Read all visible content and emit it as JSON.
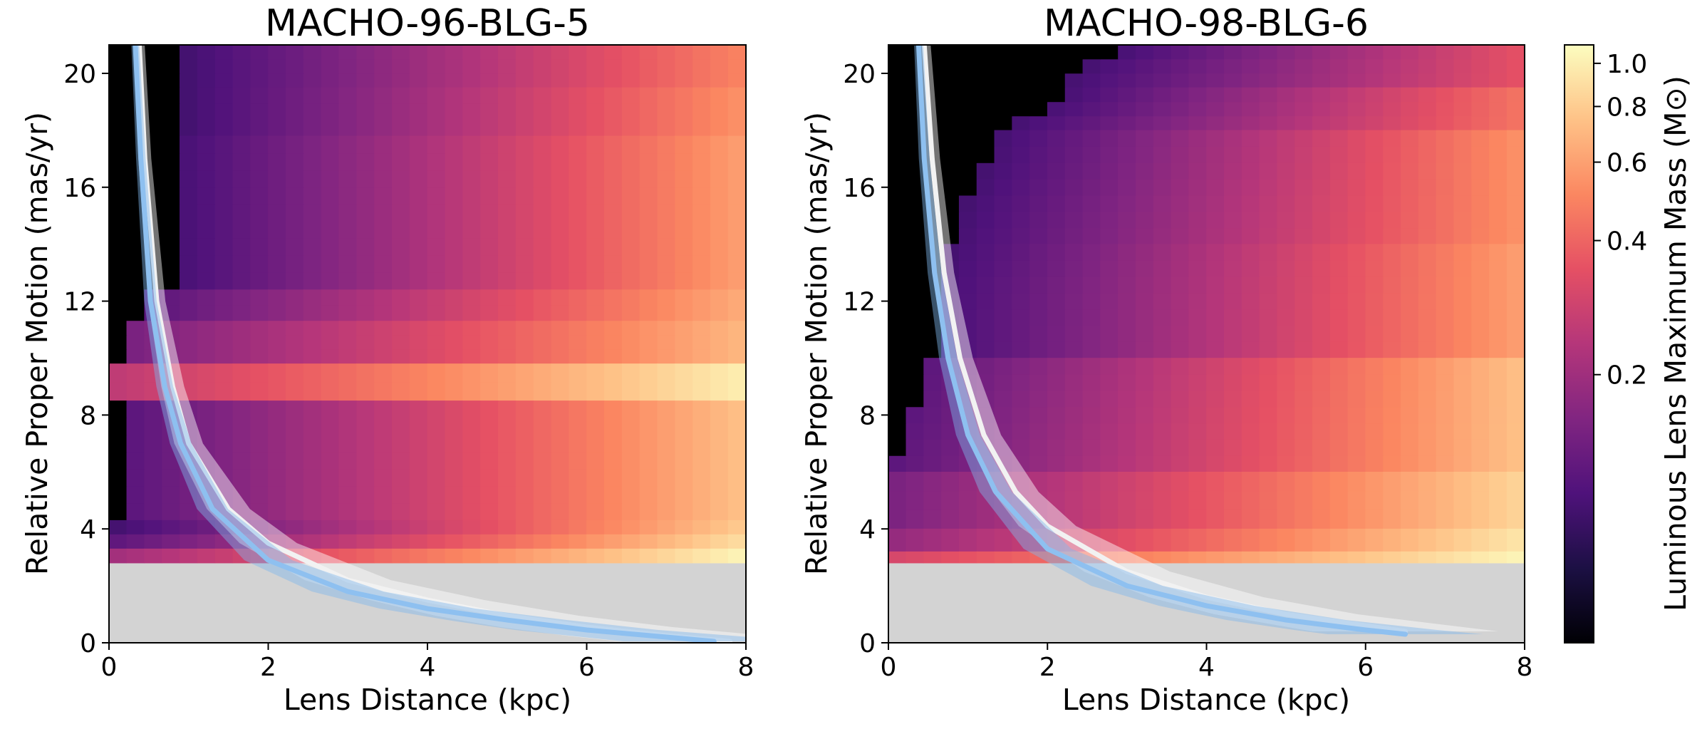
{
  "chart_data": [
    {
      "type": "heatmap",
      "title": "MACHO-96-BLG-5",
      "xlabel": "Lens Distance (kpc)",
      "ylabel": "Relative Proper Motion (mas/yr)",
      "xlim": [
        0,
        8
      ],
      "ylim": [
        0,
        21
      ],
      "xticks": [
        0,
        2,
        4,
        6,
        8
      ],
      "yticks": [
        0,
        4,
        8,
        12,
        16,
        20
      ],
      "excluded_region": {
        "mu_below": 2.8,
        "color": "#d3d3d3"
      },
      "heatmap": {
        "x_range": [
          0,
          8
        ],
        "y_range": [
          2.8,
          21
        ],
        "zero_color": "#000000",
        "mass_rows": [
          {
            "mu": [
              19.5,
              21.0
            ],
            "forbidden_below_D": 1.0,
            "mass_at_start": 0.1,
            "mass_at_8kpc": 0.5
          },
          {
            "mu": [
              17.8,
              19.5
            ],
            "forbidden_below_D": 1.0,
            "mass_at_start": 0.1,
            "mass_at_8kpc": 0.55
          },
          {
            "mu": [
              12.4,
              17.8
            ],
            "forbidden_below_D": 0.8,
            "mass_at_start": 0.1,
            "mass_at_8kpc": 0.6
          },
          {
            "mu": [
              11.3,
              12.4
            ],
            "forbidden_below_D": 0.55,
            "mass_at_start": 0.12,
            "mass_at_8kpc": 0.65
          },
          {
            "mu": [
              9.8,
              11.3
            ],
            "forbidden_below_D": 0.3,
            "mass_at_start": 0.15,
            "mass_at_8kpc": 0.7
          },
          {
            "mu": [
              8.5,
              9.8
            ],
            "forbidden_below_D": 0.0,
            "mass_at_start": 0.25,
            "mass_at_8kpc": 1.0
          },
          {
            "mu": [
              4.3,
              8.5
            ],
            "forbidden_below_D": 0.3,
            "mass_at_start": 0.12,
            "mass_at_8kpc": 0.75
          },
          {
            "mu": [
              3.8,
              4.3
            ],
            "forbidden_below_D": 0.1,
            "mass_at_start": 0.1,
            "mass_at_8kpc": 0.8
          },
          {
            "mu": [
              3.3,
              3.8
            ],
            "forbidden_below_D": 0.0,
            "mass_at_start": 0.12,
            "mass_at_8kpc": 0.9
          },
          {
            "mu": [
              2.8,
              3.3
            ],
            "forbidden_below_D": 0.0,
            "mass_at_start": 0.2,
            "mass_at_8kpc": 1.05
          }
        ]
      },
      "curves": [
        {
          "color": "#f2f2f2",
          "band_color": "#ffffff",
          "mu": [
            [
              0.38,
              21
            ],
            [
              0.45,
              17
            ],
            [
              0.6,
              12
            ],
            [
              0.8,
              9
            ],
            [
              1.0,
              7
            ],
            [
              1.5,
              4.7
            ],
            [
              2,
              3.5
            ],
            [
              3,
              2.2
            ],
            [
              4,
              1.5
            ],
            [
              5,
              0.95
            ],
            [
              6,
              0.55
            ],
            [
              7,
              0.25
            ],
            [
              7.8,
              0.05
            ]
          ],
          "band_halfwidth_frac": 0.18
        },
        {
          "color": "#8ec0f0",
          "band_color": "#7fb5ea",
          "mu": [
            [
              0.33,
              21
            ],
            [
              0.4,
              17
            ],
            [
              0.52,
              12
            ],
            [
              0.7,
              9
            ],
            [
              0.9,
              7
            ],
            [
              1.3,
              4.7
            ],
            [
              2,
              2.9
            ],
            [
              3,
              1.8
            ],
            [
              4,
              1.2
            ],
            [
              5,
              0.8
            ],
            [
              6,
              0.45
            ],
            [
              7,
              0.2
            ],
            [
              7.6,
              0.05
            ]
          ],
          "band_halfwidth_frac": 0.15
        }
      ]
    },
    {
      "type": "heatmap",
      "title": "MACHO-98-BLG-6",
      "xlabel": "Lens Distance (kpc)",
      "ylabel": "Relative Proper Motion (mas/yr)",
      "xlim": [
        0,
        8
      ],
      "ylim": [
        0,
        21
      ],
      "xticks": [
        0,
        2,
        4,
        6,
        8
      ],
      "yticks": [
        0,
        4,
        8,
        12,
        16,
        20
      ],
      "excluded_region": {
        "mu_below": 2.8,
        "color": "#d3d3d3"
      },
      "heatmap": {
        "x_range": [
          0,
          8
        ],
        "y_range": [
          2.8,
          21
        ],
        "zero_color": "#000000",
        "boundary": [
          [
            21.0,
            3.0
          ],
          [
            20.0,
            2.3
          ],
          [
            19.0,
            2.1
          ],
          [
            18.0,
            1.4
          ],
          [
            16.5,
            1.2
          ],
          [
            15.5,
            1.0
          ],
          [
            14.0,
            0.8
          ],
          [
            12.0,
            0.6
          ],
          [
            10.0,
            0.55
          ],
          [
            8.8,
            0.4
          ],
          [
            6.5,
            0.1
          ],
          [
            4.7,
            0.0
          ]
        ],
        "mass_rows": [
          {
            "mu": [
              19.5,
              21.0
            ],
            "mass_at_start": 0.1,
            "mass_at_8kpc": 0.35
          },
          {
            "mu": [
              18.0,
              19.5
            ],
            "mass_at_start": 0.1,
            "mass_at_8kpc": 0.45
          },
          {
            "mu": [
              14.0,
              18.0
            ],
            "mass_at_start": 0.1,
            "mass_at_8kpc": 0.55
          },
          {
            "mu": [
              10.0,
              14.0
            ],
            "mass_at_start": 0.1,
            "mass_at_8kpc": 0.6
          },
          {
            "mu": [
              6.0,
              10.0
            ],
            "mass_at_start": 0.12,
            "mass_at_8kpc": 0.75
          },
          {
            "mu": [
              4.0,
              6.0
            ],
            "mass_at_start": 0.15,
            "mass_at_8kpc": 0.85
          },
          {
            "mu": [
              3.2,
              4.0
            ],
            "mass_at_start": 0.18,
            "mass_at_8kpc": 0.95
          },
          {
            "mu": [
              2.8,
              3.2
            ],
            "mass_at_start": 0.3,
            "mass_at_8kpc": 1.05
          }
        ]
      },
      "curves": [
        {
          "color": "#f2f2f2",
          "band_color": "#ffffff",
          "mu": [
            [
              0.45,
              21
            ],
            [
              0.55,
              17
            ],
            [
              0.7,
              13
            ],
            [
              0.9,
              10
            ],
            [
              1.2,
              7.3
            ],
            [
              1.6,
              5.3
            ],
            [
              2,
              4.1
            ],
            [
              3,
              2.5
            ],
            [
              4,
              1.6
            ],
            [
              5,
              1.0
            ],
            [
              6,
              0.6
            ],
            [
              6.5,
              0.4
            ]
          ],
          "band_halfwidth_frac": 0.18
        },
        {
          "color": "#8ec0f0",
          "band_color": "#7fb5ea",
          "mu": [
            [
              0.38,
              21
            ],
            [
              0.45,
              17
            ],
            [
              0.58,
              13
            ],
            [
              0.75,
              10
            ],
            [
              1.0,
              7.3
            ],
            [
              1.35,
              5.3
            ],
            [
              2,
              3.3
            ],
            [
              3,
              2.0
            ],
            [
              4,
              1.3
            ],
            [
              5,
              0.8
            ],
            [
              6,
              0.45
            ],
            [
              6.5,
              0.3
            ]
          ],
          "band_halfwidth_frac": 0.15
        }
      ]
    }
  ],
  "colorbar": {
    "label": "Luminous Lens Maximum Mass (M⊙)",
    "scale": "log",
    "range": [
      0.05,
      1.1
    ],
    "ticks": [
      {
        "value": 0.2,
        "label": "0.2"
      },
      {
        "value": 0.4,
        "label": "0.4"
      },
      {
        "value": 0.6,
        "label": "0.6"
      },
      {
        "value": 0.8,
        "label": "0.8"
      },
      {
        "value": 1.0,
        "label": "1.0"
      }
    ],
    "colormap": "magma",
    "colormap_stops": [
      "#000004",
      "#1c1044",
      "#4f127b",
      "#812581",
      "#b5367a",
      "#e55064",
      "#fb8761",
      "#fec287",
      "#fcfdbf"
    ]
  }
}
